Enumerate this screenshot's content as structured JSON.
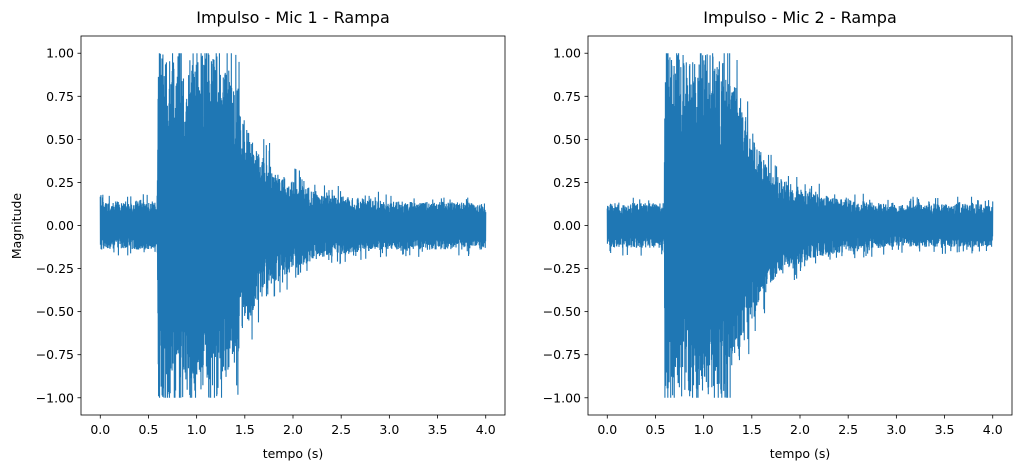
{
  "chart_data": [
    {
      "type": "line",
      "title": "Impulso - Mic 1 - Rampa",
      "xlabel": "tempo (s)",
      "ylabel": "Magnitude",
      "xlim": [
        -0.2,
        4.2
      ],
      "ylim": [
        -1.1,
        1.1
      ],
      "x_ticks": [
        "0.0",
        "0.5",
        "1.0",
        "1.5",
        "2.0",
        "2.5",
        "3.0",
        "3.5",
        "4.0"
      ],
      "y_ticks": [
        "1.00",
        "0.75",
        "0.50",
        "0.25",
        "0.00",
        "−0.25",
        "−0.50",
        "−0.75",
        "−1.00"
      ],
      "color": "#1f77b4",
      "grid": false,
      "series": [
        {
          "envelope_time_s": [
            0.0,
            0.59,
            0.6,
            1.0,
            1.1,
            1.2,
            1.25,
            1.3,
            1.4,
            1.5,
            1.6,
            1.7,
            1.8,
            2.0,
            2.2,
            2.5,
            3.0,
            3.5,
            4.0
          ],
          "envelope_peak_magnitude": [
            0.14,
            0.14,
            1.0,
            1.0,
            1.0,
            1.0,
            0.95,
            0.9,
            0.8,
            0.62,
            0.48,
            0.4,
            0.33,
            0.26,
            0.2,
            0.17,
            0.14,
            0.14,
            0.13
          ]
        }
      ]
    },
    {
      "type": "line",
      "title": "Impulso - Mic 2 - Rampa",
      "xlabel": "tempo (s)",
      "ylabel": "",
      "xlim": [
        -0.2,
        4.2
      ],
      "ylim": [
        -1.1,
        1.1
      ],
      "x_ticks": [
        "0.0",
        "0.5",
        "1.0",
        "1.5",
        "2.0",
        "2.5",
        "3.0",
        "3.5",
        "4.0"
      ],
      "y_ticks": [
        "1.00",
        "0.75",
        "0.50",
        "0.25",
        "0.00",
        "−0.25",
        "−0.50",
        "−0.75",
        "−1.00"
      ],
      "color": "#1f77b4",
      "grid": false,
      "series": [
        {
          "envelope_time_s": [
            0.0,
            0.59,
            0.6,
            1.0,
            1.1,
            1.15,
            1.2,
            1.3,
            1.4,
            1.5,
            1.6,
            1.7,
            1.8,
            2.0,
            2.2,
            2.5,
            3.0,
            3.5,
            4.0
          ],
          "envelope_peak_magnitude": [
            0.13,
            0.13,
            1.0,
            1.0,
            1.0,
            1.0,
            0.95,
            0.85,
            0.7,
            0.55,
            0.42,
            0.33,
            0.27,
            0.22,
            0.18,
            0.15,
            0.12,
            0.13,
            0.12
          ]
        }
      ]
    }
  ]
}
